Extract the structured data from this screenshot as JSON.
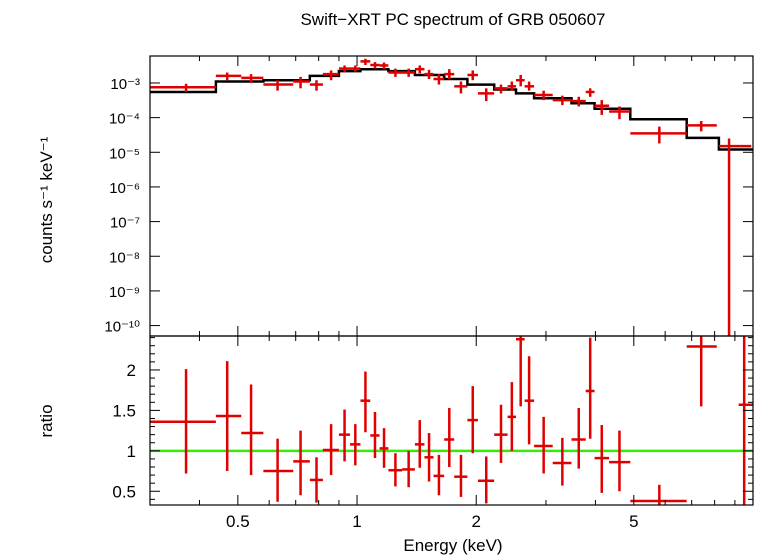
{
  "chart_data": [
    {
      "type": "scatter",
      "title": "Swift−XRT PC spectrum of GRB 050607",
      "xlabel": "Energy (keV)",
      "ylabel": "counts s⁻¹ keV⁻¹",
      "xscale": "log",
      "yscale": "log",
      "xlim": [
        0.3,
        10
      ],
      "ylim": [
        5e-11,
        0.006
      ],
      "x_ticks": [
        {
          "value": 0.5,
          "label": "0.5"
        },
        {
          "value": 1,
          "label": "1"
        },
        {
          "value": 2,
          "label": "2"
        },
        {
          "value": 5,
          "label": "5"
        }
      ],
      "y_ticks": [
        {
          "exp": -3,
          "label": "10⁻³"
        },
        {
          "exp": -4,
          "label": "10⁻⁴"
        },
        {
          "exp": -5,
          "label": "10⁻⁵"
        },
        {
          "exp": -6,
          "label": "10⁻⁶"
        },
        {
          "exp": -7,
          "label": "10⁻⁷"
        },
        {
          "exp": -8,
          "label": "10⁻⁸"
        },
        {
          "exp": -9,
          "label": "10⁻⁹"
        },
        {
          "exp": -10,
          "label": "10⁻¹⁰"
        }
      ],
      "data_color": "#e00000",
      "model_color": "#000000",
      "data": [
        {
          "x": 0.37,
          "xlo": 0.3,
          "xhi": 0.44,
          "y": 0.00075,
          "ylo": 0.00055,
          "yhi": 0.00095
        },
        {
          "x": 0.47,
          "xlo": 0.44,
          "xhi": 0.51,
          "y": 0.0016,
          "ylo": 0.0012,
          "yhi": 0.002
        },
        {
          "x": 0.54,
          "xlo": 0.51,
          "xhi": 0.58,
          "y": 0.0014,
          "ylo": 0.001,
          "yhi": 0.0018
        },
        {
          "x": 0.63,
          "xlo": 0.58,
          "xhi": 0.69,
          "y": 0.0009,
          "ylo": 0.0006,
          "yhi": 0.0012
        },
        {
          "x": 0.72,
          "xlo": 0.69,
          "xhi": 0.76,
          "y": 0.0011,
          "ylo": 0.0007,
          "yhi": 0.0015
        },
        {
          "x": 0.79,
          "xlo": 0.76,
          "xhi": 0.82,
          "y": 0.0009,
          "ylo": 0.0006,
          "yhi": 0.0012
        },
        {
          "x": 0.86,
          "xlo": 0.82,
          "xhi": 0.9,
          "y": 0.0018,
          "ylo": 0.0012,
          "yhi": 0.0023
        },
        {
          "x": 0.93,
          "xlo": 0.9,
          "xhi": 0.96,
          "y": 0.0026,
          "ylo": 0.002,
          "yhi": 0.0032
        },
        {
          "x": 0.99,
          "xlo": 0.96,
          "xhi": 1.02,
          "y": 0.0026,
          "ylo": 0.0021,
          "yhi": 0.0032
        },
        {
          "x": 1.05,
          "xlo": 1.02,
          "xhi": 1.08,
          "y": 0.0042,
          "ylo": 0.0033,
          "yhi": 0.005
        },
        {
          "x": 1.11,
          "xlo": 1.08,
          "xhi": 1.14,
          "y": 0.0033,
          "ylo": 0.0026,
          "yhi": 0.004
        },
        {
          "x": 1.17,
          "xlo": 1.14,
          "xhi": 1.2,
          "y": 0.0032,
          "ylo": 0.0025,
          "yhi": 0.0039
        },
        {
          "x": 1.25,
          "xlo": 1.2,
          "xhi": 1.3,
          "y": 0.002,
          "ylo": 0.0015,
          "yhi": 0.0026
        },
        {
          "x": 1.35,
          "xlo": 1.3,
          "xhi": 1.4,
          "y": 0.002,
          "ylo": 0.0015,
          "yhi": 0.0026
        },
        {
          "x": 1.44,
          "xlo": 1.4,
          "xhi": 1.48,
          "y": 0.0025,
          "ylo": 0.0019,
          "yhi": 0.0032
        },
        {
          "x": 1.52,
          "xlo": 1.48,
          "xhi": 1.56,
          "y": 0.0018,
          "ylo": 0.0013,
          "yhi": 0.0024
        },
        {
          "x": 1.61,
          "xlo": 1.56,
          "xhi": 1.66,
          "y": 0.0013,
          "ylo": 0.0009,
          "yhi": 0.0018
        },
        {
          "x": 1.71,
          "xlo": 1.66,
          "xhi": 1.76,
          "y": 0.0018,
          "ylo": 0.0013,
          "yhi": 0.0025
        },
        {
          "x": 1.83,
          "xlo": 1.76,
          "xhi": 1.9,
          "y": 0.0008,
          "ylo": 0.0005,
          "yhi": 0.0011
        },
        {
          "x": 1.96,
          "xlo": 1.9,
          "xhi": 2.02,
          "y": 0.0017,
          "ylo": 0.0012,
          "yhi": 0.0023
        },
        {
          "x": 2.12,
          "xlo": 2.02,
          "xhi": 2.22,
          "y": 0.0005,
          "ylo": 0.0003,
          "yhi": 0.0007
        },
        {
          "x": 2.31,
          "xlo": 2.22,
          "xhi": 2.4,
          "y": 0.0007,
          "ylo": 0.0005,
          "yhi": 0.0009
        },
        {
          "x": 2.46,
          "xlo": 2.4,
          "xhi": 2.52,
          "y": 0.0008,
          "ylo": 0.0006,
          "yhi": 0.0011
        },
        {
          "x": 2.59,
          "xlo": 2.52,
          "xhi": 2.65,
          "y": 0.0012,
          "ylo": 0.0008,
          "yhi": 0.0017
        },
        {
          "x": 2.72,
          "xlo": 2.65,
          "xhi": 2.8,
          "y": 0.0008,
          "ylo": 0.0006,
          "yhi": 0.0011
        },
        {
          "x": 2.96,
          "xlo": 2.8,
          "xhi": 3.12,
          "y": 0.00045,
          "ylo": 0.00032,
          "yhi": 0.0006
        },
        {
          "x": 3.3,
          "xlo": 3.12,
          "xhi": 3.48,
          "y": 0.00032,
          "ylo": 0.00023,
          "yhi": 0.00043
        },
        {
          "x": 3.63,
          "xlo": 3.48,
          "xhi": 3.78,
          "y": 0.0003,
          "ylo": 0.00021,
          "yhi": 0.0004
        },
        {
          "x": 3.88,
          "xlo": 3.78,
          "xhi": 3.98,
          "y": 0.00055,
          "ylo": 0.0004,
          "yhi": 0.0007
        },
        {
          "x": 4.15,
          "xlo": 3.98,
          "xhi": 4.33,
          "y": 0.00022,
          "ylo": 0.00012,
          "yhi": 0.00032
        },
        {
          "x": 4.6,
          "xlo": 4.33,
          "xhi": 4.9,
          "y": 0.00015,
          "ylo": 9e-05,
          "yhi": 0.00021
        },
        {
          "x": 5.8,
          "xlo": 4.9,
          "xhi": 6.8,
          "y": 3.5e-05,
          "ylo": 1.8e-05,
          "yhi": 5.5e-05
        },
        {
          "x": 7.4,
          "xlo": 6.8,
          "xhi": 8.1,
          "y": 6e-05,
          "ylo": 4e-05,
          "yhi": 8e-05
        },
        {
          "x": 8.7,
          "xlo": 8.2,
          "xhi": 9.9,
          "y": 1.5e-05,
          "ylo": 5e-11,
          "yhi": 2.5e-05
        }
      ],
      "model": [
        {
          "xlo": 0.3,
          "xhi": 0.44,
          "y": 0.00055
        },
        {
          "xlo": 0.44,
          "xhi": 0.58,
          "y": 0.0011
        },
        {
          "xlo": 0.58,
          "xhi": 0.76,
          "y": 0.0012
        },
        {
          "xlo": 0.76,
          "xhi": 0.9,
          "y": 0.0016
        },
        {
          "xlo": 0.9,
          "xhi": 1.02,
          "y": 0.0022
        },
        {
          "xlo": 1.02,
          "xhi": 1.2,
          "y": 0.0025
        },
        {
          "xlo": 1.2,
          "xhi": 1.4,
          "y": 0.0022
        },
        {
          "xlo": 1.4,
          "xhi": 1.66,
          "y": 0.0017
        },
        {
          "xlo": 1.66,
          "xhi": 1.9,
          "y": 0.0013
        },
        {
          "xlo": 1.9,
          "xhi": 2.22,
          "y": 0.0009
        },
        {
          "xlo": 2.22,
          "xhi": 2.52,
          "y": 0.00065
        },
        {
          "xlo": 2.52,
          "xhi": 2.8,
          "y": 0.0005
        },
        {
          "xlo": 2.8,
          "xhi": 3.48,
          "y": 0.00036
        },
        {
          "xlo": 3.48,
          "xhi": 3.98,
          "y": 0.00026
        },
        {
          "xlo": 3.98,
          "xhi": 4.9,
          "y": 0.00018
        },
        {
          "xlo": 4.9,
          "xhi": 6.8,
          "y": 9e-05
        },
        {
          "xlo": 6.8,
          "xhi": 8.2,
          "y": 2.6e-05
        },
        {
          "xlo": 8.2,
          "xhi": 9.2,
          "y": 1.2e-05
        },
        {
          "xlo": 9.2,
          "xhi": 10.0,
          "y": 1.2e-05
        }
      ]
    },
    {
      "type": "scatter",
      "xlabel": "Energy (keV)",
      "ylabel": "ratio",
      "xscale": "log",
      "xlim": [
        0.3,
        10
      ],
      "ylim": [
        0.33,
        2.42
      ],
      "x_ticks": [
        {
          "value": 0.5,
          "label": "0.5"
        },
        {
          "value": 1,
          "label": "1"
        },
        {
          "value": 2,
          "label": "2"
        },
        {
          "value": 5,
          "label": "5"
        }
      ],
      "y_ticks": [
        {
          "value": 0.5,
          "label": "0.5"
        },
        {
          "value": 1,
          "label": "1"
        },
        {
          "value": 1.5,
          "label": "1.5"
        },
        {
          "value": 2,
          "label": "2"
        }
      ],
      "reference_line": {
        "y": 1,
        "color": "#33ee00"
      },
      "data_color": "#e00000",
      "data": [
        {
          "x": 0.37,
          "xlo": 0.3,
          "xhi": 0.44,
          "y": 1.36,
          "ylo": 0.72,
          "yhi": 2.01
        },
        {
          "x": 0.47,
          "xlo": 0.44,
          "xhi": 0.51,
          "y": 1.43,
          "ylo": 0.75,
          "yhi": 2.11
        },
        {
          "x": 0.54,
          "xlo": 0.51,
          "xhi": 0.58,
          "y": 1.22,
          "ylo": 0.7,
          "yhi": 1.82
        },
        {
          "x": 0.63,
          "xlo": 0.58,
          "xhi": 0.69,
          "y": 0.75,
          "ylo": 0.37,
          "yhi": 1.15
        },
        {
          "x": 0.72,
          "xlo": 0.69,
          "xhi": 0.76,
          "y": 0.87,
          "ylo": 0.45,
          "yhi": 1.25
        },
        {
          "x": 0.79,
          "xlo": 0.76,
          "xhi": 0.82,
          "y": 0.64,
          "ylo": 0.36,
          "yhi": 0.92
        },
        {
          "x": 0.86,
          "xlo": 0.82,
          "xhi": 0.9,
          "y": 1.01,
          "ylo": 0.7,
          "yhi": 1.33
        },
        {
          "x": 0.93,
          "xlo": 0.9,
          "xhi": 0.96,
          "y": 1.2,
          "ylo": 0.87,
          "yhi": 1.51
        },
        {
          "x": 0.99,
          "xlo": 0.96,
          "xhi": 1.02,
          "y": 1.08,
          "ylo": 0.82,
          "yhi": 1.33
        },
        {
          "x": 1.05,
          "xlo": 1.02,
          "xhi": 1.08,
          "y": 1.62,
          "ylo": 1.23,
          "yhi": 1.98
        },
        {
          "x": 1.11,
          "xlo": 1.08,
          "xhi": 1.14,
          "y": 1.19,
          "ylo": 0.91,
          "yhi": 1.48
        },
        {
          "x": 1.17,
          "xlo": 1.14,
          "xhi": 1.2,
          "y": 1.03,
          "ylo": 0.79,
          "yhi": 1.28
        },
        {
          "x": 1.25,
          "xlo": 1.2,
          "xhi": 1.3,
          "y": 0.76,
          "ylo": 0.56,
          "yhi": 0.97
        },
        {
          "x": 1.35,
          "xlo": 1.3,
          "xhi": 1.4,
          "y": 0.77,
          "ylo": 0.55,
          "yhi": 1.0
        },
        {
          "x": 1.44,
          "xlo": 1.4,
          "xhi": 1.48,
          "y": 1.08,
          "ylo": 0.79,
          "yhi": 1.38
        },
        {
          "x": 1.52,
          "xlo": 1.48,
          "xhi": 1.56,
          "y": 0.92,
          "ylo": 0.62,
          "yhi": 1.22
        },
        {
          "x": 1.61,
          "xlo": 1.56,
          "xhi": 1.66,
          "y": 0.69,
          "ylo": 0.45,
          "yhi": 0.95
        },
        {
          "x": 1.71,
          "xlo": 1.66,
          "xhi": 1.76,
          "y": 1.14,
          "ylo": 0.8,
          "yhi": 1.53
        },
        {
          "x": 1.83,
          "xlo": 1.76,
          "xhi": 1.9,
          "y": 0.68,
          "ylo": 0.43,
          "yhi": 0.95
        },
        {
          "x": 1.96,
          "xlo": 1.9,
          "xhi": 2.02,
          "y": 1.38,
          "ylo": 0.97,
          "yhi": 1.8
        },
        {
          "x": 2.12,
          "xlo": 2.02,
          "xhi": 2.22,
          "y": 0.63,
          "ylo": 0.35,
          "yhi": 0.93
        },
        {
          "x": 2.31,
          "xlo": 2.22,
          "xhi": 2.4,
          "y": 1.2,
          "ylo": 0.85,
          "yhi": 1.57
        },
        {
          "x": 2.46,
          "xlo": 2.4,
          "xhi": 2.52,
          "y": 1.42,
          "ylo": 1.0,
          "yhi": 1.85
        },
        {
          "x": 2.59,
          "xlo": 2.52,
          "xhi": 2.65,
          "y": 2.38,
          "ylo": 1.55,
          "yhi": 2.42
        },
        {
          "x": 2.72,
          "xlo": 2.65,
          "xhi": 2.8,
          "y": 1.62,
          "ylo": 1.08,
          "yhi": 2.17
        },
        {
          "x": 2.96,
          "xlo": 2.8,
          "xhi": 3.12,
          "y": 1.06,
          "ylo": 0.72,
          "yhi": 1.42
        },
        {
          "x": 3.3,
          "xlo": 3.12,
          "xhi": 3.48,
          "y": 0.85,
          "ylo": 0.57,
          "yhi": 1.16
        },
        {
          "x": 3.63,
          "xlo": 3.48,
          "xhi": 3.78,
          "y": 1.14,
          "ylo": 0.78,
          "yhi": 1.53
        },
        {
          "x": 3.88,
          "xlo": 3.78,
          "xhi": 3.98,
          "y": 1.74,
          "ylo": 1.15,
          "yhi": 2.4
        },
        {
          "x": 4.15,
          "xlo": 3.98,
          "xhi": 4.33,
          "y": 0.91,
          "ylo": 0.48,
          "yhi": 1.32
        },
        {
          "x": 4.6,
          "xlo": 4.33,
          "xhi": 4.9,
          "y": 0.86,
          "ylo": 0.5,
          "yhi": 1.25
        },
        {
          "x": 5.8,
          "xlo": 4.9,
          "xhi": 6.8,
          "y": 0.38,
          "ylo": 0.33,
          "yhi": 0.58
        },
        {
          "x": 7.4,
          "xlo": 6.8,
          "xhi": 8.1,
          "y": 2.29,
          "ylo": 1.55,
          "yhi": 2.42
        },
        {
          "x": 9.5,
          "xlo": 9.2,
          "xhi": 10.0,
          "y": 1.57,
          "ylo": 0.33,
          "yhi": 2.42
        }
      ]
    }
  ]
}
